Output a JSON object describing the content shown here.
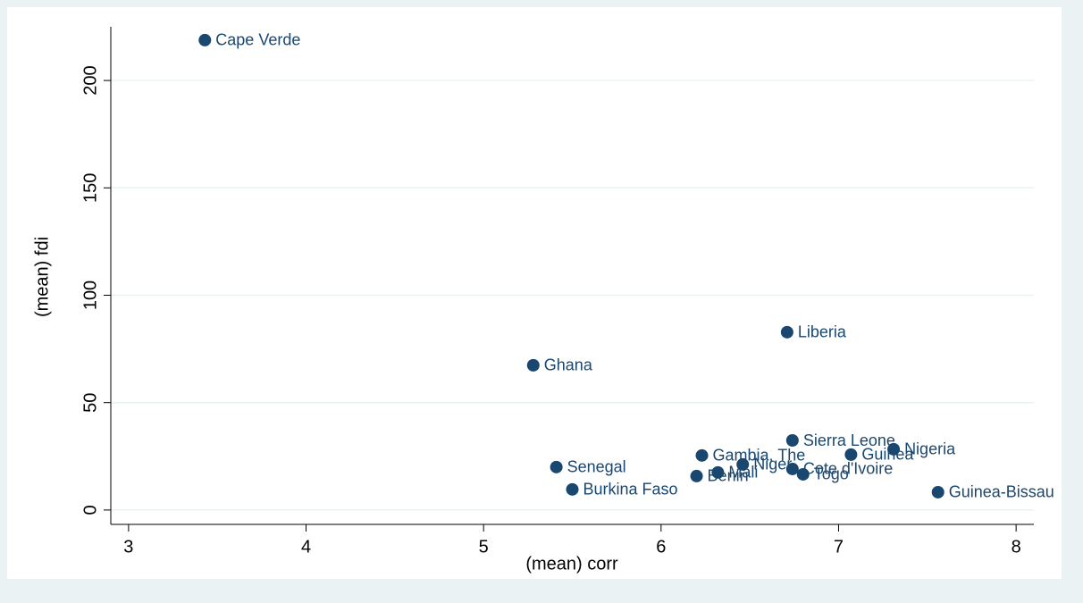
{
  "chart_data": {
    "type": "scatter",
    "xlabel": "(mean) corr",
    "ylabel": "(mean) fdi",
    "labels": [
      "Cape Verde",
      "Liberia",
      "Ghana",
      "Sierra Leone",
      "Nigeria",
      "Guinea",
      "Gambia, The",
      "Niger",
      "Cote d'Ivoire",
      "Mali",
      "Benin",
      "Togo",
      "Senegal",
      "Burkina Faso",
      "Guinea-Bissau"
    ],
    "x": [
      3.43,
      6.71,
      5.28,
      6.74,
      7.31,
      7.07,
      6.23,
      6.46,
      6.74,
      6.32,
      6.2,
      6.8,
      5.41,
      5.5,
      7.56
    ],
    "y": [
      218.8,
      82.8,
      67.4,
      32.4,
      28.3,
      25.8,
      25.4,
      21.2,
      19.1,
      17.5,
      15.8,
      16.6,
      20,
      9.6,
      8.3
    ],
    "color": "#1a476f",
    "xlim": [
      2.9,
      8.1
    ],
    "ylim": [
      -6.7,
      225
    ],
    "xticks": [
      3,
      4,
      5,
      6,
      7,
      8
    ],
    "yticks": [
      0,
      50,
      100,
      150,
      200
    ],
    "grid": true
  }
}
